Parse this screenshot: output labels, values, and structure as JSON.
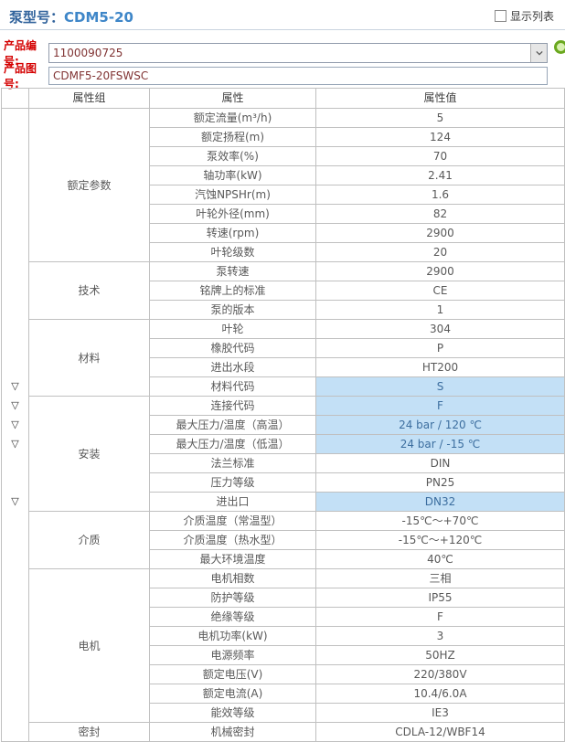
{
  "header": {
    "pump_model_label": "泵型号：",
    "pump_model_value": "CDM5-20",
    "show_list_label": "显示列表",
    "show_list_checked": false
  },
  "form": {
    "product_code_label": "产品编号:",
    "product_code_value": "1100090725",
    "product_drawing_label": "产品图号:",
    "product_drawing_value": "CDMF5-20FSWSC"
  },
  "icons": {
    "dropdown": "chevron-down-icon",
    "action": "green-ring-icon",
    "marker_glyph": "▽"
  },
  "colors": {
    "title_blue": "#31639c",
    "model_blue": "#3e86c8",
    "label_red": "#d40000",
    "input_text": "#803333",
    "highlight_bg": "#c3e0f6",
    "highlight_text": "#3c6e9f",
    "table_border": "#c0c0c0"
  },
  "table": {
    "headers": [
      "属性组",
      "属性",
      "属性值"
    ],
    "groups": [
      {
        "name": "额定参数",
        "rows": [
          {
            "attr": "额定流量(m³/h)",
            "value": "5"
          },
          {
            "attr": "额定扬程(m)",
            "value": "124"
          },
          {
            "attr": "泵效率(%)",
            "value": "70"
          },
          {
            "attr": "轴功率(kW)",
            "value": "2.41"
          },
          {
            "attr": "汽蚀NPSHr(m)",
            "value": "1.6"
          },
          {
            "attr": "叶轮外径(mm)",
            "value": "82"
          },
          {
            "attr": "转速(rpm)",
            "value": "2900"
          },
          {
            "attr": "叶轮级数",
            "value": "20"
          }
        ]
      },
      {
        "name": "技术",
        "rows": [
          {
            "attr": "泵转速",
            "value": "2900"
          },
          {
            "attr": "铭牌上的标准",
            "value": "CE"
          },
          {
            "attr": "泵的版本",
            "value": "1"
          }
        ]
      },
      {
        "name": "材料",
        "rows": [
          {
            "attr": "叶轮",
            "value": "304"
          },
          {
            "attr": "橡胶代码",
            "value": "P"
          },
          {
            "attr": "进出水段",
            "value": "HT200"
          },
          {
            "attr": "材料代码",
            "value": "S",
            "highlight": true,
            "marker": true
          }
        ]
      },
      {
        "name": "安装",
        "rows": [
          {
            "attr": "连接代码",
            "value": "F",
            "highlight": true,
            "marker": true
          },
          {
            "attr": "最大压力/温度（高温）",
            "value": "24 bar /  120 ℃",
            "highlight": true,
            "marker": true
          },
          {
            "attr": "最大压力/温度（低温）",
            "value": "24 bar /  -15 ℃",
            "highlight": true,
            "marker": true
          },
          {
            "attr": "法兰标准",
            "value": "DIN"
          },
          {
            "attr": "压力等级",
            "value": "PN25"
          },
          {
            "attr": "进出口",
            "value": "DN32",
            "highlight": true,
            "marker": true
          }
        ]
      },
      {
        "name": "介质",
        "rows": [
          {
            "attr": "介质温度（常温型）",
            "value": "-15℃～+70℃"
          },
          {
            "attr": "介质温度（热水型）",
            "value": "-15℃～+120℃"
          },
          {
            "attr": "最大环境温度",
            "value": "40℃"
          }
        ]
      },
      {
        "name": "电机",
        "rows": [
          {
            "attr": "电机相数",
            "value": "三相"
          },
          {
            "attr": "防护等级",
            "value": "IP55"
          },
          {
            "attr": "绝缘等级",
            "value": "F"
          },
          {
            "attr": "电机功率(kW)",
            "value": "3"
          },
          {
            "attr": "电源频率",
            "value": "50HZ"
          },
          {
            "attr": "额定电压(V)",
            "value": "220/380V"
          },
          {
            "attr": "额定电流(A)",
            "value": "10.4/6.0A"
          },
          {
            "attr": "能效等级",
            "value": "IE3"
          }
        ]
      },
      {
        "name": "密封",
        "rows": [
          {
            "attr": "机械密封",
            "value": "CDLA-12/WBF14"
          }
        ]
      }
    ]
  }
}
